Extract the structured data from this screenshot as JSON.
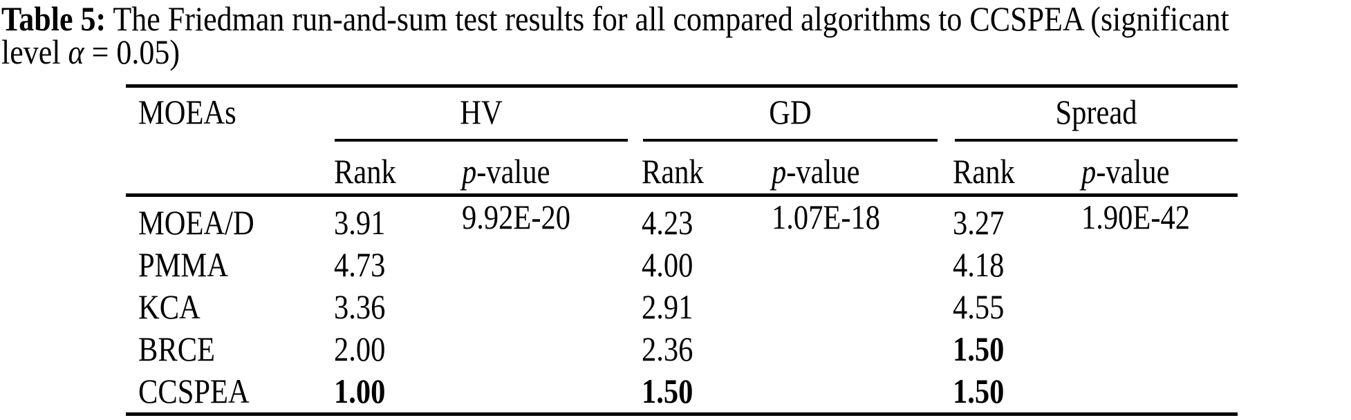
{
  "caption": {
    "tag": "Table 5:",
    "line1_rest": " The Friedman run-and-sum test results for all compared algorithms to CCSPEA (significant",
    "line2_pre": "level ",
    "alpha": "α",
    "line2_post": " = 0.05)"
  },
  "table": {
    "corner_header": "MOEAs",
    "groups": {
      "hv": "HV",
      "gd": "GD",
      "spread": "Spread"
    },
    "sub": {
      "rank": "Rank",
      "p": "p",
      "value": "-value"
    },
    "rows": [
      {
        "name": "MOEA/D",
        "hv_rank": "3.91",
        "hv_p": "9.92E-20",
        "gd_rank": "4.23",
        "gd_p": "1.07E-18",
        "sp_rank": "3.27",
        "sp_p": "1.90E-42",
        "bold": {
          "hv_rank": false,
          "gd_rank": false,
          "sp_rank": false
        }
      },
      {
        "name": "PMMA",
        "hv_rank": "4.73",
        "hv_p": "",
        "gd_rank": "4.00",
        "gd_p": "",
        "sp_rank": "4.18",
        "sp_p": "",
        "bold": {
          "hv_rank": false,
          "gd_rank": false,
          "sp_rank": false
        }
      },
      {
        "name": "KCA",
        "hv_rank": "3.36",
        "hv_p": "",
        "gd_rank": "2.91",
        "gd_p": "",
        "sp_rank": "4.55",
        "sp_p": "",
        "bold": {
          "hv_rank": false,
          "gd_rank": false,
          "sp_rank": false
        }
      },
      {
        "name": "BRCE",
        "hv_rank": "2.00",
        "hv_p": "",
        "gd_rank": "2.36",
        "gd_p": "",
        "sp_rank": "1.50",
        "sp_p": "",
        "bold": {
          "hv_rank": false,
          "gd_rank": false,
          "sp_rank": true
        }
      },
      {
        "name": "CCSPEA",
        "hv_rank": "1.00",
        "hv_p": "",
        "gd_rank": "1.50",
        "gd_p": "",
        "sp_rank": "1.50",
        "sp_p": "",
        "bold": {
          "hv_rank": true,
          "gd_rank": true,
          "sp_rank": true
        }
      }
    ]
  }
}
